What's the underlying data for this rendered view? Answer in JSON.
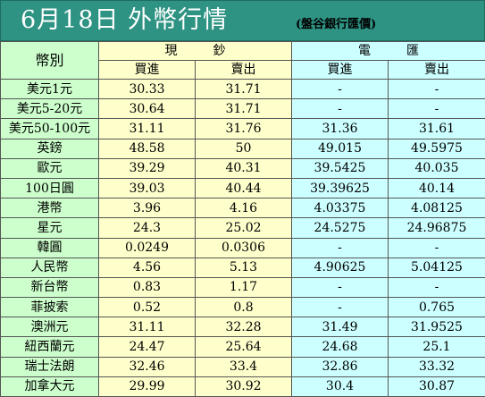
{
  "title": {
    "main": "6月18日 外幣行情",
    "source": "(盤谷銀行匯價)"
  },
  "header": {
    "currency_col": "幣別",
    "cash": "現鈔",
    "wire": "電匯",
    "buy": "買進",
    "sell": "賣出"
  },
  "rows": [
    {
      "currency": "美元1元",
      "cash_buy": "30.33",
      "cash_sell": "31.71",
      "wire_buy": "-",
      "wire_sell": "-"
    },
    {
      "currency": "美元5-20元",
      "cash_buy": "30.64",
      "cash_sell": "31.71",
      "wire_buy": "-",
      "wire_sell": "-"
    },
    {
      "currency": "美元50-100元",
      "cash_buy": "31.11",
      "cash_sell": "31.76",
      "wire_buy": "31.36",
      "wire_sell": "31.61"
    },
    {
      "currency": "英鎊",
      "cash_buy": "48.58",
      "cash_sell": "50",
      "wire_buy": "49.015",
      "wire_sell": "49.5975"
    },
    {
      "currency": "歐元",
      "cash_buy": "39.29",
      "cash_sell": "40.31",
      "wire_buy": "39.5425",
      "wire_sell": "40.035"
    },
    {
      "currency": "100日圓",
      "cash_buy": "39.03",
      "cash_sell": "40.44",
      "wire_buy": "39.39625",
      "wire_sell": "40.14"
    },
    {
      "currency": "港幣",
      "cash_buy": "3.96",
      "cash_sell": "4.16",
      "wire_buy": "4.03375",
      "wire_sell": "4.08125"
    },
    {
      "currency": "星元",
      "cash_buy": "24.3",
      "cash_sell": "25.02",
      "wire_buy": "24.5275",
      "wire_sell": "24.96875"
    },
    {
      "currency": "韓圓",
      "cash_buy": "0.0249",
      "cash_sell": "0.0306",
      "wire_buy": "-",
      "wire_sell": "-"
    },
    {
      "currency": "人民幣",
      "cash_buy": "4.56",
      "cash_sell": "5.13",
      "wire_buy": "4.90625",
      "wire_sell": "5.04125"
    },
    {
      "currency": "新台幣",
      "cash_buy": "0.83",
      "cash_sell": "1.17",
      "wire_buy": "-",
      "wire_sell": "-"
    },
    {
      "currency": "菲披索",
      "cash_buy": "0.52",
      "cash_sell": "0.8",
      "wire_buy": "-",
      "wire_sell": "0.765"
    },
    {
      "currency": "澳洲元",
      "cash_buy": "31.11",
      "cash_sell": "32.28",
      "wire_buy": "31.49",
      "wire_sell": "31.9525"
    },
    {
      "currency": "紐西蘭元",
      "cash_buy": "24.47",
      "cash_sell": "25.64",
      "wire_buy": "24.68",
      "wire_sell": "25.1"
    },
    {
      "currency": "瑞士法朗",
      "cash_buy": "32.46",
      "cash_sell": "33.4",
      "wire_buy": "32.86",
      "wire_sell": "33.32"
    },
    {
      "currency": "加拿大元",
      "cash_buy": "29.99",
      "cash_sell": "30.92",
      "wire_buy": "30.4",
      "wire_sell": "30.87"
    }
  ],
  "colors": {
    "title_background": "#2e9383",
    "title_text": "#ffffff",
    "label_cells": "#ccffcc",
    "cash_cells": "#ffffcc",
    "wire_cells": "#ccffff",
    "grid_lines": "#555555"
  }
}
